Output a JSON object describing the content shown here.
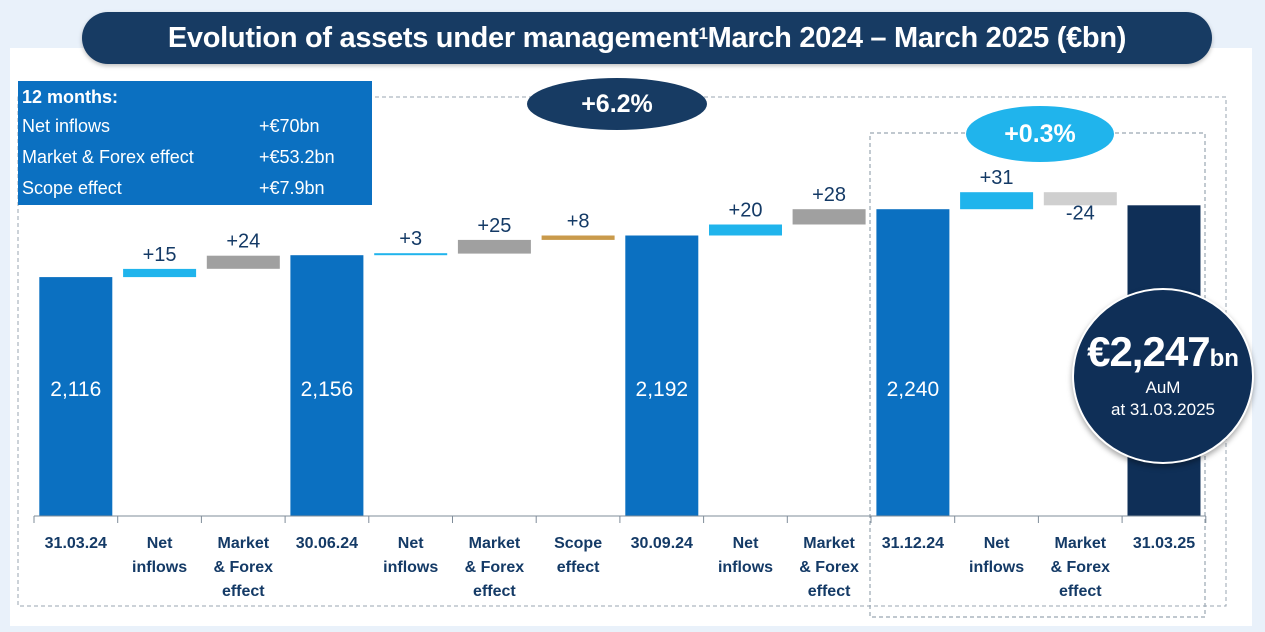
{
  "title": "Evolution of assets under management",
  "title_sup": "1",
  "title_rest": " March 2024 – March 2025 (€bn)",
  "summary": {
    "header": "12 months:",
    "rows": [
      {
        "label": "Net inflows",
        "value": "+€70bn"
      },
      {
        "label": "Market & Forex effect",
        "value": "+€53.2bn"
      },
      {
        "label": "Scope effect",
        "value": "+€7.9bn"
      }
    ]
  },
  "badges": {
    "twelve_month": "+6.2%",
    "quarter": "+0.3%"
  },
  "highlight": {
    "amount": "€2,247",
    "unit": "bn",
    "line1": "AuM",
    "line2": "at 31.03.2025"
  },
  "colors": {
    "total": "#0b70c1",
    "final": "#0f2f57",
    "net_inflow": "#20b4ec",
    "market": "#a0a0a0",
    "market_neg": "#cfcfcf",
    "scope": "#c99a4b",
    "axis_text": "#143a66"
  },
  "chart_data": {
    "type": "waterfall",
    "title": "Evolution of assets under management March 2024 – March 2025 (€bn)",
    "unit": "€bn",
    "ylim": [
      1680,
      2275
    ],
    "categories": [
      [
        "31.03.24"
      ],
      [
        "Net",
        "inflows"
      ],
      [
        "Market",
        "& Forex",
        "effect"
      ],
      [
        "30.06.24"
      ],
      [
        "Net",
        "inflows"
      ],
      [
        "Market",
        "& Forex",
        "effect"
      ],
      [
        "Scope",
        "effect"
      ],
      [
        "30.09.24"
      ],
      [
        "Net",
        "inflows"
      ],
      [
        "Market",
        "& Forex",
        "effect"
      ],
      [
        "31.12.24"
      ],
      [
        "Net",
        "inflows"
      ],
      [
        "Market",
        "& Forex",
        "effect"
      ],
      [
        "31.03.25"
      ]
    ],
    "bars": [
      {
        "kind": "total",
        "value": 2116,
        "label": "2,116"
      },
      {
        "kind": "net_inflow",
        "value": 15,
        "label": "+15"
      },
      {
        "kind": "market",
        "value": 24,
        "label": "+24"
      },
      {
        "kind": "total",
        "value": 2156,
        "label": "2,156"
      },
      {
        "kind": "net_inflow",
        "value": 3,
        "label": "+3"
      },
      {
        "kind": "market",
        "value": 25,
        "label": "+25"
      },
      {
        "kind": "scope",
        "value": 8,
        "label": "+8"
      },
      {
        "kind": "total",
        "value": 2192,
        "label": "2,192"
      },
      {
        "kind": "net_inflow",
        "value": 20,
        "label": "+20"
      },
      {
        "kind": "market",
        "value": 28,
        "label": "+28"
      },
      {
        "kind": "total",
        "value": 2240,
        "label": "2,240"
      },
      {
        "kind": "net_inflow",
        "value": 31,
        "label": "+31"
      },
      {
        "kind": "market",
        "value": -24,
        "label": "-24"
      },
      {
        "kind": "final",
        "value": 2247,
        "label": ""
      }
    ]
  }
}
